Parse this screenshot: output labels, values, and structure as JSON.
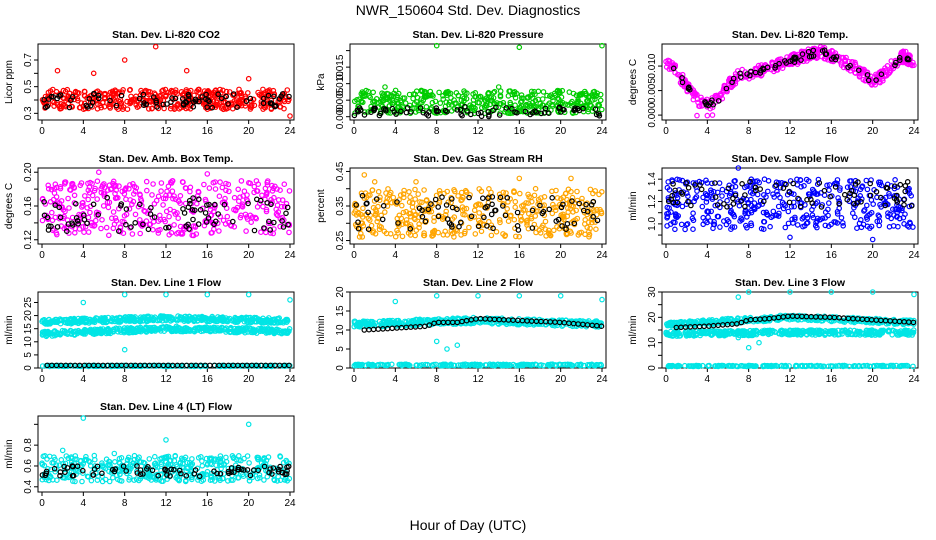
{
  "main_title": "NWR_150604 Std. Dev. Diagnostics",
  "x_axis_label": "Hour of Day (UTC)",
  "colors": {
    "red": "#ff0000",
    "green": "#00cc00",
    "magenta": "#ff00ff",
    "orange": "#ffa500",
    "blue": "#0000ff",
    "cyan": "#00e5e5",
    "black": "#000000"
  },
  "chart_data": [
    {
      "type": "scatter",
      "title": "Stan. Dev. Li-820 CO2",
      "ylabel": "Licor ppm",
      "xlim": [
        0,
        24
      ],
      "x_ticks": [
        0,
        4,
        8,
        12,
        16,
        20,
        24
      ],
      "ylim": [
        0.25,
        0.82
      ],
      "y_ticks": [
        0.3,
        0.4,
        0.5,
        0.6,
        0.7
      ],
      "y_tick_labels": [
        "0.3",
        "0.5",
        "0.7"
      ],
      "color": "red",
      "band": [
        0.33,
        0.48
      ],
      "black_band": [
        0.34,
        0.45
      ],
      "outliers": [
        [
          1.5,
          0.62
        ],
        [
          5,
          0.6
        ],
        [
          8,
          0.7
        ],
        [
          11,
          0.8
        ],
        [
          14,
          0.62
        ],
        [
          20,
          0.56
        ],
        [
          24,
          0.28
        ]
      ]
    },
    {
      "type": "scatter",
      "title": "Stan. Dev. Li-820 Pressure",
      "ylabel": "kPa",
      "xlim": [
        0,
        24
      ],
      "x_ticks": [
        0,
        4,
        8,
        12,
        16,
        20,
        24
      ],
      "ylim": [
        -0.001,
        0.022
      ],
      "y_ticks": [
        0.0,
        0.005,
        0.01,
        0.015,
        0.02
      ],
      "y_tick_labels": [
        "0.000",
        "0.005",
        "0.010",
        "0.015"
      ],
      "color": "green",
      "band": [
        0.001,
        0.008
      ],
      "black_band": [
        0.0,
        0.003
      ],
      "outliers": [
        [
          8,
          0.0215
        ],
        [
          16,
          0.021
        ],
        [
          24,
          0.0215
        ],
        [
          3,
          0.009
        ],
        [
          14,
          0.009
        ]
      ]
    },
    {
      "type": "scatter",
      "title": "Stan. Dev. Li-820 Temp.",
      "ylabel": "degrees C",
      "xlim": [
        0,
        24
      ],
      "x_ticks": [
        0,
        4,
        8,
        12,
        16,
        20,
        24
      ],
      "ylim": [
        -0.001,
        0.0145
      ],
      "y_ticks": [
        0.0,
        0.005,
        0.01
      ],
      "y_tick_labels": [
        "0.000",
        "0.005",
        "0.010"
      ],
      "color": "magenta",
      "curve": [
        [
          0,
          0.011
        ],
        [
          1,
          0.009
        ],
        [
          2,
          0.006
        ],
        [
          3,
          0.003
        ],
        [
          4,
          0.002
        ],
        [
          5,
          0.003
        ],
        [
          6,
          0.006
        ],
        [
          7,
          0.008
        ],
        [
          8,
          0.0085
        ],
        [
          10,
          0.0095
        ],
        [
          12,
          0.011
        ],
        [
          14,
          0.0125
        ],
        [
          15,
          0.013
        ],
        [
          16,
          0.012
        ],
        [
          17,
          0.011
        ],
        [
          18,
          0.01
        ],
        [
          19,
          0.0085
        ],
        [
          20,
          0.007
        ],
        [
          21,
          0.008
        ],
        [
          22,
          0.0105
        ],
        [
          23,
          0.012
        ],
        [
          24,
          0.011
        ]
      ],
      "noise": 0.0012,
      "outliers": [
        [
          3,
          -0.0001
        ],
        [
          4,
          -0.0001
        ],
        [
          4.5,
          0.0
        ]
      ]
    },
    {
      "type": "scatter",
      "title": "Stan. Dev. Amb. Box Temp.",
      "ylabel": "degrees C",
      "xlim": [
        0,
        24
      ],
      "x_ticks": [
        0,
        4,
        8,
        12,
        16,
        20,
        24
      ],
      "ylim": [
        0.115,
        0.205
      ],
      "y_ticks": [
        0.12,
        0.14,
        0.16,
        0.18,
        0.2
      ],
      "y_tick_labels": [
        "0.12",
        "0.16",
        "0.20"
      ],
      "color": "magenta",
      "band": [
        0.125,
        0.19
      ],
      "black_band": [
        0.13,
        0.17
      ],
      "outliers": [
        [
          5.5,
          0.2
        ],
        [
          16,
          0.198
        ]
      ]
    },
    {
      "type": "scatter",
      "title": "Stan. Dev. Gas Stream RH",
      "ylabel": "percent",
      "xlim": [
        0,
        24
      ],
      "x_ticks": [
        0,
        4,
        8,
        12,
        16,
        20,
        24
      ],
      "ylim": [
        0.24,
        0.46
      ],
      "y_ticks": [
        0.25,
        0.3,
        0.35,
        0.4,
        0.45
      ],
      "y_tick_labels": [
        "0.25",
        "0.35",
        "0.45"
      ],
      "color": "orange",
      "band": [
        0.26,
        0.4
      ],
      "black_band": [
        0.28,
        0.38
      ],
      "outliers": [
        [
          1,
          0.44
        ],
        [
          2,
          0.42
        ],
        [
          6,
          0.42
        ],
        [
          16,
          0.43
        ],
        [
          21,
          0.43
        ]
      ]
    },
    {
      "type": "scatter",
      "title": "Stan. Dev. Sample Flow",
      "ylabel": "ml/min",
      "xlim": [
        0,
        24
      ],
      "x_ticks": [
        0,
        4,
        8,
        12,
        16,
        20,
        24
      ],
      "ylim": [
        0.82,
        1.5
      ],
      "y_ticks": [
        0.9,
        1.0,
        1.1,
        1.2,
        1.3,
        1.4
      ],
      "y_tick_labels": [
        "1.0",
        "1.2",
        "1.4"
      ],
      "color": "blue",
      "band": [
        0.95,
        1.4
      ],
      "black_band": [
        1.15,
        1.38
      ],
      "outliers": [
        [
          7,
          1.5
        ],
        [
          12,
          0.88
        ],
        [
          20,
          0.86
        ]
      ]
    },
    {
      "type": "scatter",
      "title": "Stan. Dev. Line 1 Flow",
      "ylabel": "ml/min",
      "xlim": [
        0,
        24
      ],
      "x_ticks": [
        0,
        4,
        8,
        12,
        16,
        20,
        24
      ],
      "ylim": [
        0,
        29
      ],
      "y_ticks": [
        0,
        5,
        10,
        15,
        20,
        25
      ],
      "y_tick_labels": [
        "0",
        "5",
        "10",
        "15",
        "20",
        "25"
      ],
      "color": "cyan",
      "bands": [
        [
          [
            0,
            17.5
          ],
          [
            12,
            19
          ],
          [
            24,
            18
          ]
        ],
        [
          [
            0,
            13
          ],
          [
            12,
            15
          ],
          [
            24,
            14
          ]
        ]
      ],
      "noise": 1.0,
      "black_line": 1.0,
      "cyan_base": 0.8,
      "outliers": [
        [
          4,
          25
        ],
        [
          8,
          28
        ],
        [
          12,
          28
        ],
        [
          16,
          28
        ],
        [
          20,
          28
        ],
        [
          24,
          26
        ],
        [
          8,
          7
        ]
      ]
    },
    {
      "type": "scatter",
      "title": "Stan. Dev. Line 2 Flow",
      "ylabel": "ml/min",
      "xlim": [
        0,
        24
      ],
      "x_ticks": [
        0,
        4,
        8,
        12,
        16,
        20,
        24
      ],
      "ylim": [
        0,
        20
      ],
      "y_ticks": [
        0,
        5,
        10,
        15,
        20
      ],
      "y_tick_labels": [
        "0",
        "5",
        "10",
        "15",
        "20"
      ],
      "color": "cyan",
      "bands": [
        [
          [
            0,
            11.5
          ],
          [
            12,
            12.5
          ],
          [
            24,
            11.5
          ]
        ]
      ],
      "noise": 0.8,
      "black_curve": [
        [
          1,
          10
        ],
        [
          4,
          10.5
        ],
        [
          7,
          11
        ],
        [
          8,
          12
        ],
        [
          10,
          12
        ],
        [
          12,
          13
        ],
        [
          16,
          12.5
        ],
        [
          20,
          12
        ],
        [
          24,
          11
        ]
      ],
      "cyan_base": 0.8,
      "outliers": [
        [
          4,
          17.5
        ],
        [
          8,
          19
        ],
        [
          12,
          19
        ],
        [
          16,
          19
        ],
        [
          20,
          19
        ],
        [
          24,
          18
        ],
        [
          8,
          7
        ],
        [
          9,
          5
        ],
        [
          10,
          6
        ]
      ]
    },
    {
      "type": "scatter",
      "title": "Stan. Dev. Line 3 Flow",
      "ylabel": "ml/min",
      "xlim": [
        0,
        24
      ],
      "x_ticks": [
        0,
        4,
        8,
        12,
        16,
        20,
        24
      ],
      "ylim": [
        0,
        30
      ],
      "y_ticks": [
        0,
        5,
        10,
        15,
        20,
        25,
        30
      ],
      "y_tick_labels": [
        "0",
        "10",
        "20",
        "30"
      ],
      "color": "cyan",
      "bands": [
        [
          [
            0,
            17
          ],
          [
            12,
            20
          ],
          [
            24,
            18
          ]
        ],
        [
          [
            0,
            13.5
          ],
          [
            12,
            14
          ],
          [
            24,
            14
          ]
        ]
      ],
      "noise": 1.0,
      "black_curve": [
        [
          1,
          16
        ],
        [
          4,
          16.5
        ],
        [
          7,
          17.5
        ],
        [
          8,
          19
        ],
        [
          10,
          19.5
        ],
        [
          12,
          20.5
        ],
        [
          16,
          20
        ],
        [
          20,
          19
        ],
        [
          24,
          18
        ]
      ],
      "cyan_base": 0.8,
      "outliers": [
        [
          7,
          28
        ],
        [
          8,
          30
        ],
        [
          12,
          30
        ],
        [
          16,
          30
        ],
        [
          20,
          30
        ],
        [
          24,
          29
        ],
        [
          7,
          12
        ],
        [
          8,
          8
        ],
        [
          9,
          10
        ]
      ]
    },
    {
      "type": "scatter",
      "title": "Stan. Dev. Line 4 (LT) Flow",
      "ylabel": "ml/min",
      "xlim": [
        0,
        24
      ],
      "x_ticks": [
        0,
        4,
        8,
        12,
        16,
        20,
        24
      ],
      "ylim": [
        0.35,
        1.08
      ],
      "y_ticks": [
        0.4,
        0.6,
        0.8,
        1.0
      ],
      "y_tick_labels": [
        "0.4",
        "0.6",
        "0.8"
      ],
      "color": "cyan",
      "band": [
        0.45,
        0.7
      ],
      "black_band": [
        0.5,
        0.6
      ],
      "outliers": [
        [
          4,
          1.06
        ],
        [
          12,
          0.85
        ],
        [
          20,
          1.0
        ],
        [
          2,
          0.75
        ],
        [
          7,
          0.72
        ]
      ]
    }
  ]
}
